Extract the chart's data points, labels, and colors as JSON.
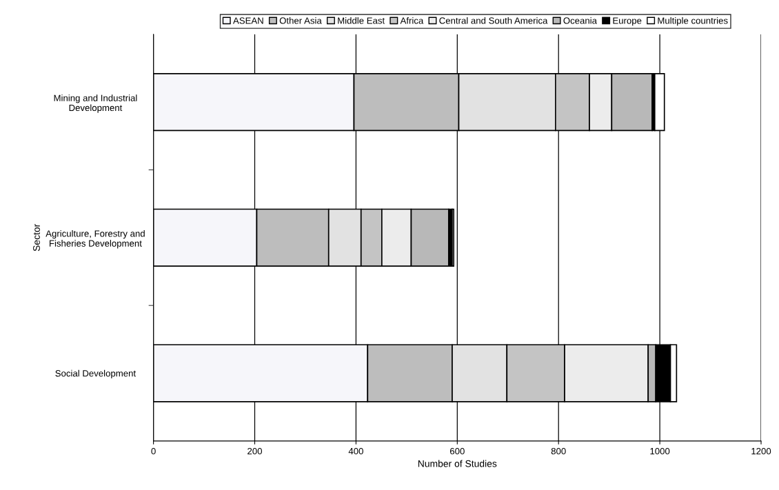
{
  "chart_data": {
    "type": "bar",
    "orientation": "horizontal",
    "stacked": true,
    "categories": [
      "Mining and Industrial\nDevelopment",
      "Agriculture, Forestry and\nFisheries Development",
      "Social Development"
    ],
    "series": [
      {
        "name": "ASEAN",
        "color": "#f6f6fa",
        "values": [
          396,
          204,
          423
        ]
      },
      {
        "name": "Other Asia",
        "color": "#bdbdbd",
        "values": [
          207,
          142,
          167
        ]
      },
      {
        "name": "Middle East",
        "color": "#e2e2e2",
        "values": [
          191,
          64,
          108
        ]
      },
      {
        "name": "Africa",
        "color": "#c4c4c4",
        "values": [
          67,
          41,
          114
        ]
      },
      {
        "name": "Central and South America",
        "color": "#ececec",
        "values": [
          44,
          58,
          165
        ]
      },
      {
        "name": "Oceania",
        "color": "#b8b8b8",
        "values": [
          80,
          74,
          15
        ]
      },
      {
        "name": "Europe",
        "color": "#000000",
        "values": [
          5,
          7,
          29
        ]
      },
      {
        "name": "Multiple countries",
        "color": "#ffffff",
        "values": [
          19,
          3,
          12
        ]
      }
    ],
    "xlabel": "Number of Studies",
    "ylabel": "Sector",
    "xlim": [
      0,
      1200
    ],
    "xticks": [
      0,
      200,
      400,
      600,
      800,
      1000,
      1200
    ],
    "grid": "x",
    "legend": "top"
  }
}
